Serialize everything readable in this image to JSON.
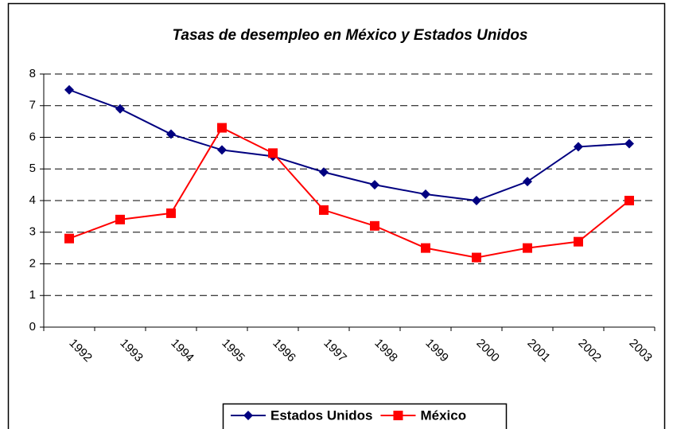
{
  "chart_data": {
    "type": "line",
    "title": "Tasas de desempleo en México y Estados Unidos",
    "categories": [
      "1992",
      "1993",
      "1994",
      "1995",
      "1996",
      "1997",
      "1998",
      "1999",
      "2000",
      "2001",
      "2002",
      "2003"
    ],
    "series": [
      {
        "name": "Estados Unidos",
        "color": "#000080",
        "marker": "diamond",
        "values": [
          7.5,
          6.9,
          6.1,
          5.6,
          5.4,
          4.9,
          4.5,
          4.2,
          4.0,
          4.6,
          5.7,
          5.8
        ]
      },
      {
        "name": "México",
        "color": "#ff0000",
        "marker": "square",
        "values": [
          2.8,
          3.4,
          3.6,
          6.3,
          5.5,
          3.7,
          3.2,
          2.5,
          2.2,
          2.5,
          2.7,
          4.0
        ]
      }
    ],
    "ylim": [
      0,
      8
    ],
    "yticks": [
      0,
      1,
      2,
      3,
      4,
      5,
      6,
      7,
      8
    ],
    "grid": true,
    "legend": "bottom"
  }
}
